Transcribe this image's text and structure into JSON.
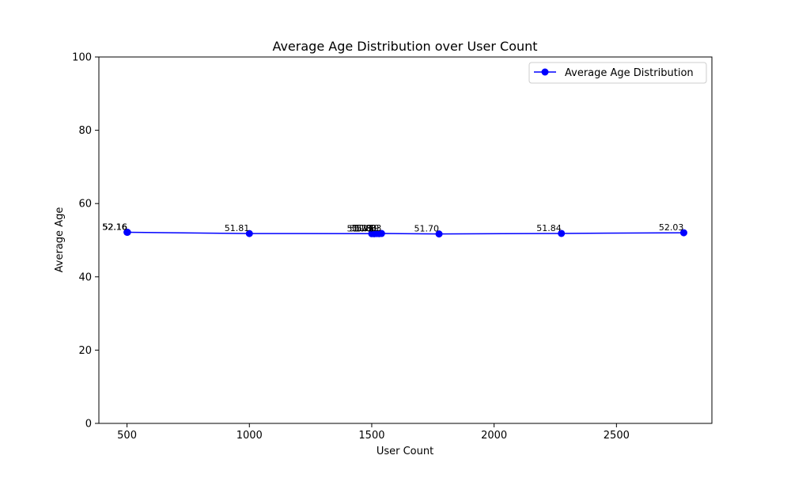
{
  "chart_data": {
    "type": "line",
    "title": "Average Age Distribution over User Count",
    "xlabel": "User Count",
    "ylabel": "Average Age",
    "xlim": [
      385,
      2890
    ],
    "ylim": [
      0,
      100
    ],
    "x_ticks": [
      500,
      1000,
      1500,
      2000,
      2500
    ],
    "y_ticks": [
      0,
      20,
      40,
      60,
      80,
      100
    ],
    "grid": false,
    "legend_position": "top-right",
    "series": [
      {
        "name": "Average Age Distribution",
        "color": "#0000ff",
        "marker": "circle",
        "points": [
          {
            "x": 500,
            "y": 52.16,
            "label": "52.16"
          },
          {
            "x": 502,
            "y": 52.16,
            "label": "52.16"
          },
          {
            "x": 1000,
            "y": 51.81,
            "label": "51.81"
          },
          {
            "x": 1500,
            "y": 51.78,
            "label": "51.78"
          },
          {
            "x": 1510,
            "y": 51.76,
            "label": "51.76"
          },
          {
            "x": 1520,
            "y": 51.8,
            "label": "51.80"
          },
          {
            "x": 1530,
            "y": 51.79,
            "label": "51.79"
          },
          {
            "x": 1540,
            "y": 51.83,
            "label": "51.83"
          },
          {
            "x": 1775,
            "y": 51.7,
            "label": "51.70"
          },
          {
            "x": 2275,
            "y": 51.84,
            "label": "51.84"
          },
          {
            "x": 2775,
            "y": 52.03,
            "label": "52.03"
          }
        ]
      }
    ]
  }
}
